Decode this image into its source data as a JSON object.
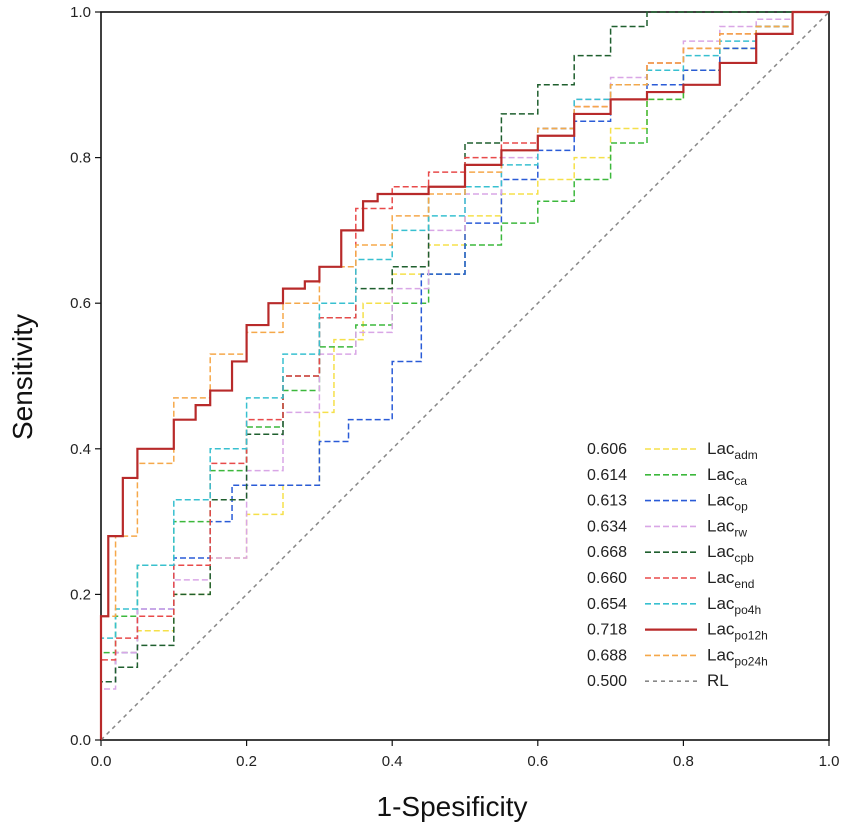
{
  "chart_data": {
    "type": "line",
    "xlabel": "1-Spesificity",
    "ylabel": "Sensitivity",
    "xlim": [
      0,
      1
    ],
    "ylim": [
      0,
      1
    ],
    "x_ticks": [
      "0.0",
      "0.2",
      "0.4",
      "0.6",
      "0.8",
      "1.0"
    ],
    "y_ticks": [
      "0.0",
      "0.2",
      "0.4",
      "0.6",
      "0.8",
      "1.0"
    ],
    "legend_position": "bottom-right",
    "series": [
      {
        "name": "Lac",
        "sub": "adm",
        "auc": "0.606",
        "color": "#f5e04a",
        "dash": "dashed",
        "highlight": false,
        "x": [
          0,
          0.02,
          0.05,
          0.1,
          0.15,
          0.2,
          0.25,
          0.3,
          0.32,
          0.36,
          0.4,
          0.45,
          0.5,
          0.55,
          0.6,
          0.65,
          0.7,
          0.75,
          0.8,
          0.85,
          0.9,
          0.95,
          1.0
        ],
        "y": [
          0,
          0.08,
          0.12,
          0.15,
          0.2,
          0.25,
          0.31,
          0.35,
          0.45,
          0.55,
          0.6,
          0.64,
          0.68,
          0.72,
          0.75,
          0.77,
          0.8,
          0.84,
          0.88,
          0.92,
          0.95,
          0.98,
          1.0
        ]
      },
      {
        "name": "Lac",
        "sub": "ca",
        "auc": "0.614",
        "color": "#3cb83c",
        "dash": "dashed",
        "highlight": false,
        "x": [
          0,
          0.02,
          0.05,
          0.1,
          0.15,
          0.2,
          0.25,
          0.3,
          0.35,
          0.4,
          0.45,
          0.5,
          0.55,
          0.6,
          0.65,
          0.7,
          0.75,
          0.8,
          0.85,
          0.9,
          0.95,
          1.0
        ],
        "y": [
          0,
          0.12,
          0.17,
          0.24,
          0.3,
          0.37,
          0.43,
          0.48,
          0.54,
          0.57,
          0.6,
          0.64,
          0.68,
          0.71,
          0.74,
          0.77,
          0.82,
          0.88,
          0.92,
          0.95,
          0.98,
          1.0
        ]
      },
      {
        "name": "Lac",
        "sub": "op",
        "auc": "0.613",
        "color": "#2a5bd7",
        "dash": "dashed",
        "highlight": false,
        "x": [
          0,
          0.02,
          0.05,
          0.1,
          0.15,
          0.18,
          0.22,
          0.3,
          0.34,
          0.38,
          0.4,
          0.44,
          0.5,
          0.55,
          0.6,
          0.65,
          0.7,
          0.75,
          0.8,
          0.85,
          0.9,
          0.95,
          1.0
        ],
        "y": [
          0,
          0.08,
          0.12,
          0.18,
          0.25,
          0.3,
          0.35,
          0.35,
          0.41,
          0.44,
          0.44,
          0.52,
          0.64,
          0.71,
          0.77,
          0.81,
          0.85,
          0.88,
          0.9,
          0.92,
          0.95,
          0.97,
          1.0
        ]
      },
      {
        "name": "Lac",
        "sub": "rw",
        "auc": "0.634",
        "color": "#d9a6e6",
        "dash": "dashed",
        "highlight": false,
        "x": [
          0,
          0.02,
          0.05,
          0.1,
          0.15,
          0.2,
          0.25,
          0.3,
          0.35,
          0.4,
          0.45,
          0.5,
          0.55,
          0.6,
          0.65,
          0.7,
          0.75,
          0.8,
          0.85,
          0.9,
          0.95,
          1.0
        ],
        "y": [
          0,
          0.07,
          0.12,
          0.18,
          0.22,
          0.25,
          0.37,
          0.45,
          0.53,
          0.56,
          0.62,
          0.7,
          0.75,
          0.8,
          0.84,
          0.88,
          0.91,
          0.93,
          0.96,
          0.98,
          0.99,
          1.0
        ]
      },
      {
        "name": "Lac",
        "sub": "cpb",
        "auc": "0.668",
        "color": "#1f5f2e",
        "dash": "dashed",
        "highlight": false,
        "x": [
          0,
          0.02,
          0.05,
          0.1,
          0.15,
          0.2,
          0.25,
          0.3,
          0.35,
          0.4,
          0.45,
          0.5,
          0.55,
          0.6,
          0.65,
          0.7,
          0.75,
          0.8,
          0.85,
          0.9,
          0.95,
          1.0
        ],
        "y": [
          0,
          0.08,
          0.1,
          0.13,
          0.2,
          0.33,
          0.42,
          0.5,
          0.58,
          0.62,
          0.65,
          0.76,
          0.82,
          0.86,
          0.9,
          0.94,
          0.98,
          1.0,
          1.0,
          1.0,
          1.0,
          1.0
        ]
      },
      {
        "name": "Lac",
        "sub": "end",
        "auc": "0.660",
        "color": "#e84a4a",
        "dash": "dashed",
        "highlight": false,
        "x": [
          0,
          0.02,
          0.05,
          0.1,
          0.15,
          0.2,
          0.25,
          0.3,
          0.35,
          0.4,
          0.45,
          0.5,
          0.55,
          0.6,
          0.65,
          0.7,
          0.75,
          0.8,
          0.85,
          0.9,
          0.95,
          1.0
        ],
        "y": [
          0,
          0.11,
          0.14,
          0.17,
          0.24,
          0.38,
          0.44,
          0.5,
          0.58,
          0.73,
          0.76,
          0.78,
          0.8,
          0.82,
          0.84,
          0.87,
          0.9,
          0.93,
          0.95,
          0.97,
          0.98,
          1.0
        ]
      },
      {
        "name": "Lac",
        "sub": "po4h",
        "auc": "0.654",
        "color": "#38c0d0",
        "dash": "dashed",
        "highlight": false,
        "x": [
          0,
          0.02,
          0.05,
          0.1,
          0.15,
          0.2,
          0.25,
          0.3,
          0.35,
          0.4,
          0.45,
          0.5,
          0.55,
          0.6,
          0.65,
          0.7,
          0.75,
          0.8,
          0.85,
          0.9,
          0.95,
          1.0
        ],
        "y": [
          0,
          0.14,
          0.18,
          0.24,
          0.33,
          0.4,
          0.47,
          0.53,
          0.6,
          0.66,
          0.7,
          0.72,
          0.76,
          0.79,
          0.84,
          0.88,
          0.9,
          0.92,
          0.94,
          0.96,
          0.98,
          1.0
        ]
      },
      {
        "name": "Lac",
        "sub": "po12h",
        "auc": "0.718",
        "color": "#b82a2a",
        "dash": "solid",
        "highlight": true,
        "x": [
          0,
          0.01,
          0.03,
          0.05,
          0.07,
          0.1,
          0.13,
          0.15,
          0.18,
          0.2,
          0.23,
          0.25,
          0.28,
          0.3,
          0.33,
          0.36,
          0.38,
          0.4,
          0.45,
          0.5,
          0.55,
          0.6,
          0.65,
          0.7,
          0.75,
          0.8,
          0.85,
          0.9,
          0.95,
          1.0
        ],
        "y": [
          0,
          0.17,
          0.28,
          0.36,
          0.4,
          0.4,
          0.44,
          0.46,
          0.48,
          0.52,
          0.57,
          0.6,
          0.62,
          0.63,
          0.65,
          0.7,
          0.74,
          0.75,
          0.75,
          0.76,
          0.79,
          0.81,
          0.83,
          0.86,
          0.88,
          0.89,
          0.9,
          0.93,
          0.97,
          1.0
        ]
      },
      {
        "name": "Lac",
        "sub": "po24h",
        "auc": "0.688",
        "color": "#f5a84a",
        "dash": "dashed",
        "highlight": false,
        "x": [
          0,
          0.02,
          0.05,
          0.1,
          0.15,
          0.2,
          0.25,
          0.3,
          0.35,
          0.4,
          0.45,
          0.5,
          0.55,
          0.6,
          0.65,
          0.7,
          0.75,
          0.8,
          0.85,
          0.9,
          0.95,
          1.0
        ],
        "y": [
          0,
          0.17,
          0.28,
          0.38,
          0.47,
          0.53,
          0.56,
          0.6,
          0.65,
          0.68,
          0.72,
          0.75,
          0.78,
          0.81,
          0.84,
          0.87,
          0.9,
          0.93,
          0.95,
          0.97,
          0.98,
          1.0
        ]
      },
      {
        "name": "RL",
        "sub": "",
        "auc": "0.500",
        "color": "#888888",
        "dash": "dashed",
        "highlight": false,
        "x": [
          0,
          1
        ],
        "y": [
          0,
          1
        ]
      }
    ]
  },
  "colors": {
    "highlight_text": "#b82a2a",
    "axis": "#111111"
  }
}
